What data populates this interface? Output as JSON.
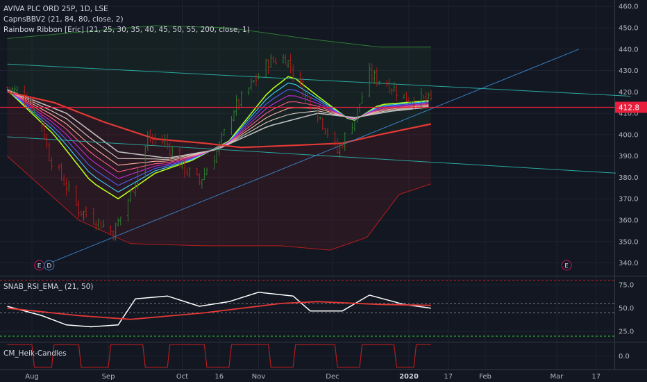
{
  "header": {
    "symbol_line": "AVIVA PLC ORD 25P, 1D, LSE",
    "indicator_1": "CapnsBBV2 (21, 84, 80, close, 2)",
    "indicator_2": "Rainbow Ribbon [Eric] (21, 25, 30, 35, 40, 45, 50, 55, 200, close, 1)"
  },
  "panes": {
    "rsi_label": "SNAB_RSI_EMA_ (21, 50)",
    "heik_label": "CM_Heik-Candles"
  },
  "colors": {
    "background": "#131722",
    "grid": "#1e2230",
    "price_tag": "#e91e3c",
    "up": "#2e7d32",
    "down": "#b71c1c",
    "trend": "#3a7fc0",
    "channel": "#2aa6a0"
  },
  "events": [
    {
      "label": "E",
      "x": "Aug 4"
    },
    {
      "label": "D",
      "x": "Aug 8"
    },
    {
      "label": "E",
      "x": "Mar 5"
    }
  ],
  "chart_data": [
    {
      "type": "candlestick",
      "title": "AVIVA PLC ORD 25P, 1D, LSE",
      "x_ticks": [
        "Aug",
        "Sep",
        "Oct",
        "16",
        "Nov",
        "Dec",
        "2020",
        "17",
        "Feb",
        "Mar",
        "17"
      ],
      "y_ticks": [
        340,
        350,
        360,
        370,
        380,
        390,
        400,
        410,
        420,
        430,
        440,
        450,
        460
      ],
      "ylim": [
        334,
        463
      ],
      "last_price": "412.8",
      "price_line": 412.8,
      "close_path": [
        [
          "Jul 22",
          422
        ],
        [
          "Jul 30",
          418
        ],
        [
          "Aug 5",
          405
        ],
        [
          "Aug 8",
          390
        ],
        [
          "Aug 14",
          378
        ],
        [
          "Aug 20",
          365
        ],
        [
          "Aug 27",
          360
        ],
        [
          "Sep 3",
          354
        ],
        [
          "Sep 10",
          372
        ],
        [
          "Sep 17",
          398
        ],
        [
          "Sep 24",
          397
        ],
        [
          "Oct 1",
          385
        ],
        [
          "Oct 8",
          378
        ],
        [
          "Oct 15",
          392
        ],
        [
          "Oct 22",
          412
        ],
        [
          "Oct 29",
          423
        ],
        [
          "Nov 5",
          434
        ],
        [
          "Nov 12",
          436
        ],
        [
          "Nov 19",
          421
        ],
        [
          "Nov 26",
          408
        ],
        [
          "Dec 3",
          392
        ],
        [
          "Dec 10",
          408
        ],
        [
          "Dec 16",
          428
        ],
        [
          "Dec 23",
          424
        ],
        [
          "Dec 31",
          417
        ],
        [
          "Jan 10",
          416
        ]
      ],
      "series": [
        {
          "name": "Rainbow Ribbon fast (21)",
          "color": "#c6ff2e",
          "values": [
            [
              "Jul 22",
              421
            ],
            [
              "Aug 10",
              400
            ],
            [
              "Aug 25",
              378
            ],
            [
              "Sep 5",
              370
            ],
            [
              "Sep 20",
              382
            ],
            [
              "Oct 5",
              388
            ],
            [
              "Oct 20",
              397
            ],
            [
              "Nov 5",
              420
            ],
            [
              "Nov 14",
              428
            ],
            [
              "Nov 25",
              418
            ],
            [
              "Dec 9",
              406
            ],
            [
              "Dec 20",
              414
            ],
            [
              "Jan 10",
              416
            ]
          ]
        },
        {
          "name": "Rainbow Ribbon slow (55)",
          "color": "#bdbdbd",
          "values": [
            [
              "Jul 22",
              421
            ],
            [
              "Aug 15",
              410
            ],
            [
              "Sep 5",
              392
            ],
            [
              "Sep 25",
              389
            ],
            [
              "Oct 15",
              393
            ],
            [
              "Nov 5",
              404
            ],
            [
              "Nov 25",
              410
            ],
            [
              "Dec 10",
              408
            ],
            [
              "Dec 25",
              411
            ],
            [
              "Jan 10",
              413
            ]
          ]
        },
        {
          "name": "Rainbow Ribbon 200",
          "color": "#e53935",
          "values": [
            [
              "Jul 22",
              420
            ],
            [
              "Aug 10",
              415
            ],
            [
              "Aug 30",
              406
            ],
            [
              "Sep 20",
              398
            ],
            [
              "Oct 10",
              396
            ],
            [
              "Oct 25",
              394
            ],
            [
              "Nov 15",
              395
            ],
            [
              "Dec 5",
              396
            ],
            [
              "Dec 20",
              400
            ],
            [
              "Jan 10",
              405
            ]
          ]
        },
        {
          "name": "CapnsBBV2 upper",
          "color": "#2e7d32",
          "values": [
            [
              "Jul 22",
              445
            ],
            [
              "Aug 20",
              448
            ],
            [
              "Sep 20",
              451
            ],
            [
              "Oct 20",
              450
            ],
            [
              "Nov 20",
              445
            ],
            [
              "Dec 20",
              441
            ],
            [
              "Jan 10",
              441
            ]
          ]
        },
        {
          "name": "CapnsBBV2 lower",
          "color": "#b71c1c",
          "values": [
            [
              "Jul 22",
              390
            ],
            [
              "Aug 20",
              360
            ],
            [
              "Sep 10",
              349
            ],
            [
              "Oct 10",
              348
            ],
            [
              "Nov 10",
              348
            ],
            [
              "Nov 30",
              346
            ],
            [
              "Dec 15",
              352
            ],
            [
              "Dec 28",
              372
            ],
            [
              "Jan 10",
              377
            ]
          ]
        },
        {
          "name": "Trend line",
          "color": "#3a7fc0",
          "values": [
            [
              "Aug 4",
              338
            ],
            [
              "Mar 10",
              440
            ]
          ]
        },
        {
          "name": "Channel upper",
          "color": "#2aa6a0",
          "values": [
            [
              "Jul 22",
              433
            ],
            [
              "Mar 31",
              418
            ]
          ]
        },
        {
          "name": "Channel lower",
          "color": "#2aa6a0",
          "values": [
            [
              "Jul 22",
              399
            ],
            [
              "Mar 25",
              382
            ]
          ]
        }
      ]
    },
    {
      "type": "line",
      "title": "SNAB_RSI_EMA_ (21, 50)",
      "y_ticks": [
        25.0,
        50.0,
        75.0
      ],
      "ylim": [
        14,
        84
      ],
      "levels": [
        80,
        55,
        45,
        20
      ],
      "series": [
        {
          "name": "RSI",
          "color": "#ffffff",
          "values": [
            [
              "Jul 22",
              52
            ],
            [
              "Aug 5",
              42
            ],
            [
              "Aug 15",
              32
            ],
            [
              "Aug 25",
              30
            ],
            [
              "Sep 5",
              32
            ],
            [
              "Sep 12",
              60
            ],
            [
              "Sep 25",
              63
            ],
            [
              "Oct 8",
              52
            ],
            [
              "Oct 20",
              57
            ],
            [
              "Nov 1",
              67
            ],
            [
              "Nov 15",
              63
            ],
            [
              "Nov 22",
              47
            ],
            [
              "Dec 5",
              47
            ],
            [
              "Dec 16",
              64
            ],
            [
              "Dec 30",
              54
            ],
            [
              "Jan 10",
              50
            ]
          ]
        },
        {
          "name": "EMA",
          "color": "#e53935",
          "values": [
            [
              "Jul 22",
              50
            ],
            [
              "Aug 20",
              42
            ],
            [
              "Sep 10",
              38
            ],
            [
              "Oct 10",
              45
            ],
            [
              "Nov 10",
              55
            ],
            [
              "Nov 25",
              57
            ],
            [
              "Dec 20",
              54
            ],
            [
              "Jan 10",
              53
            ]
          ]
        }
      ]
    },
    {
      "type": "line",
      "title": "CM_Heik-Candles",
      "y_ticks": [
        0.0
      ],
      "ylim": [
        -1.2,
        1.2
      ],
      "series": [
        {
          "name": "CM_Heik-Candles",
          "color": "#b71c1c",
          "values": [
            [
              "Jul 22",
              1
            ],
            [
              "Aug 1",
              1
            ],
            [
              "Aug 2",
              -1
            ],
            [
              "Aug 9",
              -1
            ],
            [
              "Aug 10",
              1
            ],
            [
              "Aug 20",
              1
            ],
            [
              "Aug 21",
              -1
            ],
            [
              "Sep 1",
              -1
            ],
            [
              "Sep 2",
              1
            ],
            [
              "Sep 15",
              1
            ],
            [
              "Sep 16",
              -1
            ],
            [
              "Sep 25",
              -1
            ],
            [
              "Sep 26",
              1
            ],
            [
              "Oct 10",
              1
            ],
            [
              "Oct 11",
              -1
            ],
            [
              "Oct 20",
              -1
            ],
            [
              "Oct 21",
              1
            ],
            [
              "Nov 5",
              1
            ],
            [
              "Nov 6",
              -1
            ],
            [
              "Nov 15",
              -1
            ],
            [
              "Nov 16",
              1
            ],
            [
              "Dec 2",
              1
            ],
            [
              "Dec 3",
              -1
            ],
            [
              "Dec 12",
              -1
            ],
            [
              "Dec 13",
              1
            ],
            [
              "Dec 26",
              1
            ],
            [
              "Dec 27",
              -1
            ],
            [
              "Jan 3",
              -1
            ],
            [
              "Jan 4",
              1
            ],
            [
              "Jan 10",
              1
            ]
          ]
        }
      ]
    }
  ]
}
